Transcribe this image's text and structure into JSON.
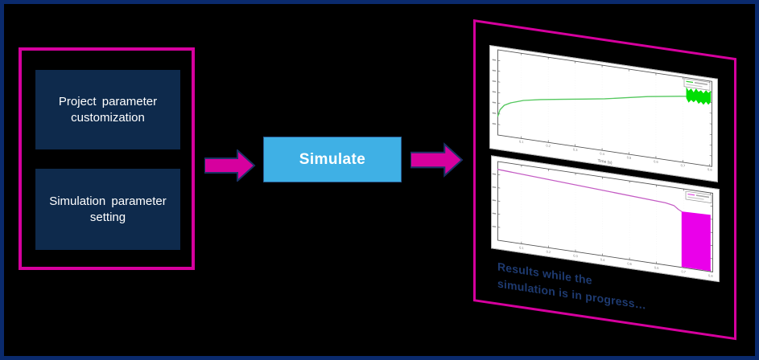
{
  "colors": {
    "background": "#000000",
    "window_border_navy": "#0a2a6d",
    "magenta_accent": "#d6009e",
    "step_box_navy": "#0e2a4c",
    "simulate_button_blue": "#3fb0e5",
    "caption_navy": "#1e3a70",
    "green_signal": "#55c85f",
    "green_noise_band": "#00de05",
    "magenta_signal": "#c45cc4",
    "magenta_drop_band": "#ea00ea"
  },
  "left_panel": {
    "steps": [
      {
        "label": "Project parameter customization"
      },
      {
        "label": "Simulation parameter setting"
      }
    ]
  },
  "arrows": {
    "arrow1": "right-block-arrow",
    "arrow2": "right-block-arrow"
  },
  "simulate_button": {
    "label": "Simulate"
  },
  "results_panel": {
    "caption_line1": "Results while the",
    "caption_line2": "simulation is in progress…"
  },
  "chart_data": [
    {
      "type": "line",
      "title": "",
      "xlabel": "Time (s)",
      "ylabel": "",
      "x_ticks": [
        "0.1",
        "0.2",
        "0.3",
        "0.4",
        "0.5",
        "0.6",
        "0.7",
        "0.8"
      ],
      "grid": "faint dotted vertical",
      "legend_position": "top-right",
      "description": "Green signal rises steeply then flattens (log-like); thick noisy green band at right end where simulation is still computing.",
      "series": [
        {
          "name": "green-signal",
          "color": "#55c85f",
          "points_pct": [
            [
              0,
              78
            ],
            [
              1,
              70
            ],
            [
              3,
              64
            ],
            [
              6,
              60
            ],
            [
              12,
              55
            ],
            [
              20,
              51
            ],
            [
              30,
              47
            ],
            [
              40,
              43
            ],
            [
              50,
              39
            ],
            [
              60,
              34
            ],
            [
              70,
              29
            ],
            [
              80,
              25
            ],
            [
              85,
              23
            ],
            [
              88,
              22
            ]
          ]
        }
      ],
      "noise_band": {
        "color": "#00de05",
        "x_start_pct": 88,
        "x_end_pct": 99.5,
        "y_center_pct": 20,
        "half_height_pct": 9
      }
    },
    {
      "type": "line",
      "title": "",
      "xlabel": "",
      "ylabel": "",
      "x_ticks": [
        "0.1",
        "0.2",
        "0.3",
        "0.4",
        "0.5",
        "0.6",
        "0.7",
        "0.8"
      ],
      "grid": "faint dotted vertical",
      "legend_position": "top-right",
      "description": "Magenta signal slopes gently down, steps down near 85%, then a solid magenta band fills from ~85% of x-range to the right edge down to the axis.",
      "series": [
        {
          "name": "magenta-signal",
          "color": "#c45cc4",
          "points_pct": [
            [
              0,
              10
            ],
            [
              78,
              21
            ],
            [
              82,
              23
            ],
            [
              84,
              27
            ],
            [
              85.5,
              29
            ]
          ]
        }
      ],
      "drop_band": {
        "color": "#ea00ea",
        "x_start_pct": 85.5,
        "x_end_pct": 99,
        "y_top_pct": 29
      }
    }
  ]
}
